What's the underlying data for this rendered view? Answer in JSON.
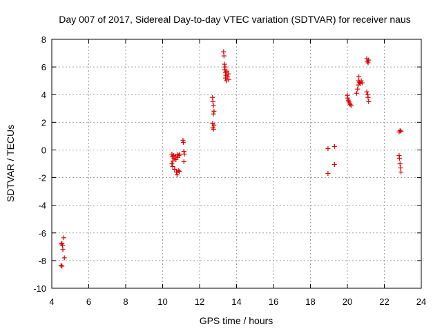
{
  "chart_data": {
    "type": "scatter",
    "title": "Day 007 of 2017, Sidereal Day-to-day VTEC variation (SDTVAR) for receiver naus",
    "xlabel": "GPS time / hours",
    "ylabel": "SDTVAR / TECUs",
    "xlim": [
      4,
      24
    ],
    "ylim": [
      -10,
      8
    ],
    "xticks": [
      4,
      6,
      8,
      10,
      12,
      14,
      16,
      18,
      20,
      22,
      24
    ],
    "yticks": [
      -10,
      -8,
      -6,
      -4,
      -2,
      0,
      2,
      4,
      6,
      8
    ],
    "grid": true,
    "marker": "+",
    "color": "#dd0000",
    "series": [
      {
        "name": "SDTVAR",
        "points": [
          [
            4.52,
            -6.8
          ],
          [
            4.55,
            -6.75
          ],
          [
            4.58,
            -6.9
          ],
          [
            4.6,
            -7.2
          ],
          [
            4.65,
            -6.35
          ],
          [
            4.68,
            -7.8
          ],
          [
            4.5,
            -8.35
          ],
          [
            4.55,
            -8.4
          ],
          [
            10.5,
            -0.3
          ],
          [
            10.52,
            -0.5
          ],
          [
            10.55,
            -0.8
          ],
          [
            10.5,
            -1.0
          ],
          [
            10.55,
            -1.2
          ],
          [
            10.6,
            -0.4
          ],
          [
            10.62,
            -0.6
          ],
          [
            10.65,
            -1.4
          ],
          [
            10.7,
            -0.45
          ],
          [
            10.72,
            -0.7
          ],
          [
            10.75,
            -1.6
          ],
          [
            10.78,
            -1.8
          ],
          [
            10.8,
            -0.35
          ],
          [
            10.82,
            -0.55
          ],
          [
            10.85,
            -1.5
          ],
          [
            10.88,
            -0.4
          ],
          [
            10.9,
            -1.55
          ],
          [
            10.92,
            -0.3
          ],
          [
            11.1,
            0.7
          ],
          [
            11.12,
            0.55
          ],
          [
            11.15,
            -0.1
          ],
          [
            11.18,
            -0.3
          ],
          [
            11.15,
            -0.85
          ],
          [
            12.7,
            3.8
          ],
          [
            12.72,
            3.5
          ],
          [
            12.75,
            3.2
          ],
          [
            12.78,
            2.8
          ],
          [
            12.75,
            2.6
          ],
          [
            12.7,
            1.9
          ],
          [
            12.78,
            1.8
          ],
          [
            12.72,
            1.6
          ],
          [
            12.75,
            1.5
          ],
          [
            13.3,
            7.1
          ],
          [
            13.32,
            6.8
          ],
          [
            13.35,
            6.2
          ],
          [
            13.38,
            6.0
          ],
          [
            13.35,
            5.8
          ],
          [
            13.4,
            5.6
          ],
          [
            13.42,
            5.4
          ],
          [
            13.4,
            5.2
          ],
          [
            13.45,
            5.0
          ],
          [
            13.5,
            5.3
          ],
          [
            13.48,
            5.7
          ],
          [
            13.55,
            5.5
          ],
          [
            13.58,
            5.1
          ],
          [
            18.95,
            0.1
          ],
          [
            19.3,
            0.25
          ],
          [
            19.3,
            -1.05
          ],
          [
            18.95,
            -1.7
          ],
          [
            20.0,
            3.95
          ],
          [
            20.02,
            3.75
          ],
          [
            20.05,
            3.6
          ],
          [
            20.08,
            3.5
          ],
          [
            20.1,
            3.4
          ],
          [
            20.15,
            3.3
          ],
          [
            20.2,
            3.2
          ],
          [
            20.5,
            4.1
          ],
          [
            20.55,
            4.4
          ],
          [
            20.58,
            4.7
          ],
          [
            20.6,
            5.0
          ],
          [
            20.62,
            5.3
          ],
          [
            20.65,
            4.9
          ],
          [
            20.7,
            4.8
          ],
          [
            20.75,
            5.0
          ],
          [
            20.8,
            4.85
          ],
          [
            21.05,
            6.6
          ],
          [
            21.08,
            6.4
          ],
          [
            21.12,
            6.3
          ],
          [
            21.15,
            6.5
          ],
          [
            21.05,
            4.2
          ],
          [
            21.1,
            4.0
          ],
          [
            21.12,
            3.8
          ],
          [
            21.15,
            3.5
          ],
          [
            22.8,
            1.3
          ],
          [
            22.85,
            1.4
          ],
          [
            22.9,
            1.35
          ],
          [
            22.8,
            -0.4
          ],
          [
            22.82,
            -0.6
          ],
          [
            22.85,
            -1.0
          ],
          [
            22.88,
            -1.3
          ],
          [
            22.9,
            -1.6
          ]
        ]
      }
    ]
  }
}
